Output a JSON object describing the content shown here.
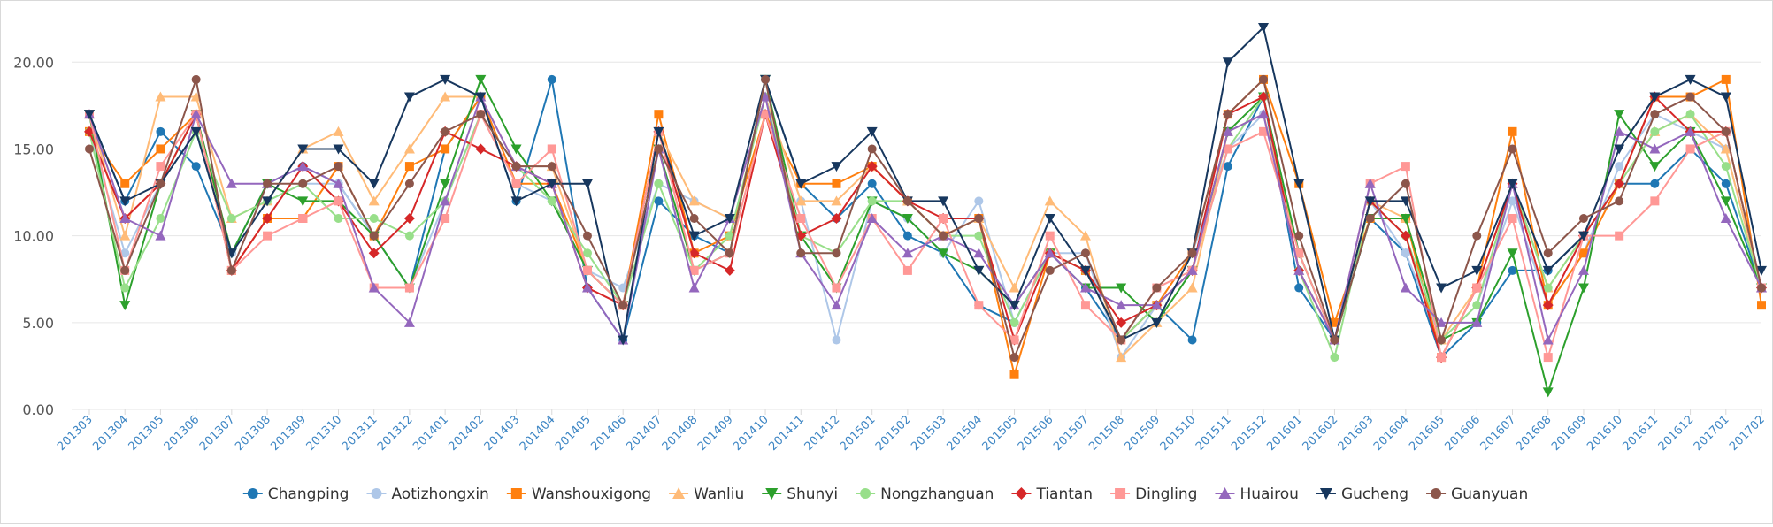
{
  "chart_data": {
    "type": "line",
    "title": "",
    "xlabel": "",
    "ylabel": "",
    "ylim": [
      0,
      22
    ],
    "yticks": [
      "0.00",
      "5.00",
      "10.00",
      "15.00",
      "20.00"
    ],
    "ytick_values": [
      0,
      5,
      10,
      15,
      20
    ],
    "grid": true,
    "legend_position": "bottom",
    "categories": [
      "201303",
      "201304",
      "201305",
      "201306",
      "201307",
      "201308",
      "201309",
      "201310",
      "201311",
      "201312",
      "201401",
      "201402",
      "201403",
      "201404",
      "201405",
      "201406",
      "201407",
      "201408",
      "201409",
      "201410",
      "201411",
      "201412",
      "201501",
      "201502",
      "201503",
      "201504",
      "201505",
      "201506",
      "201507",
      "201508",
      "201509",
      "201510",
      "201511",
      "201512",
      "201601",
      "201602",
      "201603",
      "201604",
      "201605",
      "201606",
      "201607",
      "201608",
      "201609",
      "201610",
      "201611",
      "201612",
      "201701",
      "201702"
    ],
    "series": [
      {
        "name": "Changping",
        "color": "#1f77b4",
        "marker": "circle",
        "values": [
          17,
          12,
          16,
          14,
          9,
          13,
          14,
          13,
          10,
          7,
          15,
          18,
          12,
          19,
          7,
          4,
          12,
          10,
          9,
          19,
          13,
          11,
          13,
          10,
          9,
          6,
          5,
          9,
          7,
          4,
          6,
          4,
          14,
          18,
          7,
          4,
          11,
          9,
          3,
          5,
          8,
          8,
          10,
          13,
          13,
          15,
          13,
          7
        ]
      },
      {
        "name": "Aotizhongxin",
        "color": "#aec7e8",
        "marker": "circle",
        "values": [
          16,
          9,
          13,
          16,
          9,
          12,
          13,
          13,
          10,
          7,
          12,
          17,
          13,
          12,
          8,
          7,
          13,
          12,
          11,
          18,
          12,
          4,
          12,
          11,
          9,
          12,
          5,
          9,
          9,
          3,
          6,
          9,
          15,
          17,
          8,
          4,
          12,
          9,
          4,
          6,
          12,
          6,
          9,
          14,
          17,
          16,
          15,
          7
        ]
      },
      {
        "name": "Wanshouxigong",
        "color": "#ff7f0e",
        "marker": "square",
        "values": [
          16,
          13,
          15,
          17,
          8,
          11,
          11,
          14,
          10,
          14,
          15,
          18,
          13,
          13,
          8,
          6,
          17,
          9,
          10,
          17,
          13,
          13,
          14,
          12,
          10,
          11,
          2,
          9,
          8,
          4,
          6,
          9,
          17,
          19,
          13,
          5,
          11,
          11,
          3,
          7,
          16,
          6,
          9,
          13,
          18,
          18,
          19,
          6
        ]
      },
      {
        "name": "Wanliu",
        "color": "#ffbb78",
        "marker": "triangle-up",
        "values": [
          17,
          10,
          18,
          18,
          11,
          12,
          15,
          16,
          12,
          15,
          18,
          18,
          14,
          14,
          8,
          6,
          16,
          12,
          11,
          18,
          12,
          12,
          14,
          12,
          10,
          11,
          7,
          12,
          10,
          3,
          5,
          7,
          16,
          17,
          9,
          4,
          12,
          11,
          4,
          7,
          13,
          7,
          10,
          13,
          16,
          17,
          15,
          7
        ]
      },
      {
        "name": "Shunyi",
        "color": "#2ca02c",
        "marker": "triangle-down",
        "values": [
          17,
          6,
          13,
          17,
          9,
          13,
          12,
          12,
          10,
          7,
          13,
          19,
          15,
          12,
          8,
          6,
          15,
          8,
          9,
          19,
          10,
          7,
          12,
          11,
          9,
          8,
          6,
          9,
          7,
          7,
          5,
          8,
          16,
          18,
          9,
          4,
          11,
          11,
          4,
          5,
          9,
          1,
          7,
          17,
          14,
          16,
          12,
          7
        ]
      },
      {
        "name": "Nongzhanguan",
        "color": "#98df8a",
        "marker": "circle",
        "values": [
          16,
          7,
          11,
          16,
          11,
          12,
          13,
          11,
          11,
          10,
          12,
          17,
          14,
          12,
          9,
          6,
          13,
          8,
          10,
          18,
          10,
          9,
          12,
          12,
          10,
          10,
          5,
          9,
          8,
          4,
          6,
          8,
          15,
          18,
          8,
          3,
          12,
          10,
          4,
          6,
          13,
          7,
          10,
          13,
          16,
          17,
          14,
          7
        ]
      },
      {
        "name": "Tiantan",
        "color": "#d62728",
        "marker": "diamond",
        "values": [
          16,
          11,
          13,
          17,
          8,
          11,
          14,
          12,
          9,
          11,
          16,
          15,
          14,
          13,
          7,
          6,
          16,
          9,
          8,
          17,
          10,
          11,
          14,
          12,
          11,
          11,
          4,
          9,
          8,
          5,
          6,
          8,
          17,
          18,
          8,
          4,
          12,
          10,
          3,
          7,
          13,
          6,
          10,
          13,
          18,
          16,
          16,
          7
        ]
      },
      {
        "name": "Dingling",
        "color": "#ff9896",
        "marker": "square",
        "values": [
          17,
          8,
          14,
          17,
          8,
          10,
          11,
          12,
          7,
          7,
          11,
          17,
          13,
          15,
          8,
          6,
          16,
          8,
          9,
          17,
          11,
          7,
          11,
          8,
          11,
          6,
          4,
          10,
          6,
          4,
          7,
          8,
          15,
          16,
          9,
          4,
          13,
          14,
          3,
          7,
          11,
          3,
          10,
          10,
          12,
          15,
          16,
          7
        ]
      },
      {
        "name": "Huairou",
        "color": "#9467bd",
        "marker": "triangle-up",
        "values": [
          17,
          11,
          10,
          17,
          13,
          13,
          14,
          13,
          7,
          5,
          12,
          18,
          14,
          13,
          7,
          4,
          15,
          7,
          11,
          18,
          9,
          6,
          11,
          9,
          10,
          9,
          6,
          9,
          7,
          6,
          6,
          8,
          16,
          17,
          8,
          4,
          13,
          7,
          5,
          5,
          13,
          4,
          8,
          16,
          15,
          16,
          11,
          7
        ]
      },
      {
        "name": "Gucheng",
        "color": "#17375e",
        "marker": "triangle-down",
        "values": [
          17,
          12,
          13,
          16,
          9,
          12,
          15,
          15,
          13,
          18,
          19,
          18,
          12,
          13,
          13,
          4,
          16,
          10,
          11,
          19,
          13,
          14,
          16,
          12,
          12,
          8,
          6,
          11,
          8,
          4,
          5,
          9,
          20,
          22,
          13,
          4,
          12,
          12,
          7,
          8,
          13,
          8,
          10,
          15,
          18,
          19,
          18,
          8
        ]
      },
      {
        "name": "Guanyuan",
        "color": "#8c564b",
        "marker": "circle",
        "values": [
          15,
          8,
          13,
          19,
          8,
          13,
          13,
          14,
          10,
          13,
          16,
          17,
          14,
          14,
          10,
          6,
          15,
          11,
          9,
          19,
          9,
          9,
          15,
          12,
          10,
          11,
          3,
          8,
          9,
          4,
          7,
          9,
          17,
          19,
          10,
          4,
          11,
          13,
          4,
          10,
          15,
          9,
          11,
          12,
          17,
          18,
          16,
          7
        ]
      }
    ]
  }
}
